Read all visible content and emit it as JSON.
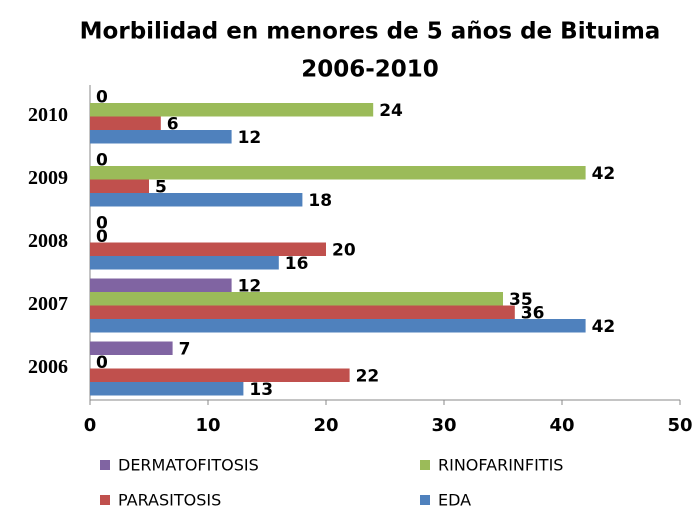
{
  "chart_data": {
    "type": "bar",
    "orientation": "horizontal",
    "title": "Morbilidad en menores de 5 años de Bituima",
    "subtitle": "2006-2010",
    "categories": [
      "2006",
      "2007",
      "2008",
      "2009",
      "2010"
    ],
    "series": [
      {
        "name": "EDA",
        "color": "#4f81bd",
        "values": [
          13,
          42,
          16,
          18,
          12
        ]
      },
      {
        "name": "PARASITOSIS",
        "color": "#c0504d",
        "values": [
          22,
          36,
          20,
          5,
          6
        ]
      },
      {
        "name": "RINOFARINFITIS",
        "color": "#9bbb59",
        "values": [
          0,
          35,
          0,
          42,
          24
        ]
      },
      {
        "name": "DERMATOFITOSIS",
        "color": "#8064a2",
        "values": [
          7,
          12,
          0,
          0,
          0
        ]
      }
    ],
    "legend_order": [
      3,
      2,
      1,
      0
    ],
    "xlim": [
      0,
      50
    ],
    "xticks": [
      0,
      10,
      20,
      30,
      40,
      50
    ],
    "grid": false,
    "legend": "bottom"
  }
}
